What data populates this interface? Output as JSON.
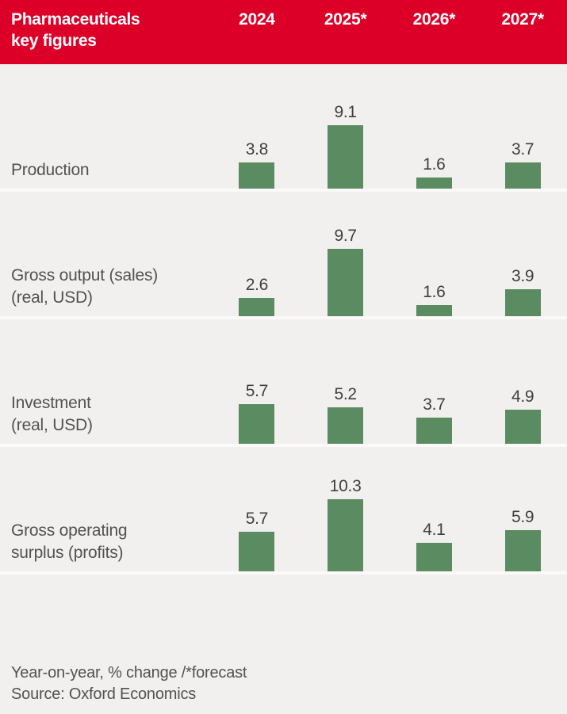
{
  "header": {
    "title_lines": [
      "Pharmaceuticals",
      "key figures"
    ],
    "columns": [
      "2024",
      "2025*",
      "2026*",
      "2027*"
    ]
  },
  "rows": [
    {
      "label_lines": [
        "Production"
      ],
      "values": [
        3.8,
        9.1,
        1.6,
        3.7
      ]
    },
    {
      "label_lines": [
        "Gross output (sales)",
        "(real, USD)"
      ],
      "values": [
        2.6,
        9.7,
        1.6,
        3.9
      ]
    },
    {
      "label_lines": [
        "Investment",
        "(real, USD)"
      ],
      "values": [
        5.7,
        5.2,
        3.7,
        4.9
      ]
    },
    {
      "label_lines": [
        "Gross operating",
        "surplus (profits)"
      ],
      "values": [
        5.7,
        10.3,
        4.1,
        5.9
      ]
    }
  ],
  "footer": {
    "note": "Year-on-year, % change /*forecast",
    "source": "Source: Oxford Economics"
  },
  "colors": {
    "header_bg": "#dc0028",
    "header_text": "#ffffff",
    "bar": "#5b8b60",
    "background": "#f1f0ee",
    "separator": "#fbfaf8",
    "label_text": "#545250",
    "value_text": "#3f3f3d"
  },
  "chart_data": {
    "type": "bar",
    "title": "Pharmaceuticals key figures",
    "categories": [
      "2024",
      "2025*",
      "2026*",
      "2027*"
    ],
    "series": [
      {
        "name": "Production",
        "values": [
          3.8,
          9.1,
          1.6,
          3.7
        ]
      },
      {
        "name": "Gross output (sales) (real, USD)",
        "values": [
          2.6,
          9.7,
          1.6,
          3.9
        ]
      },
      {
        "name": "Investment (real, USD)",
        "values": [
          5.7,
          5.2,
          3.7,
          4.9
        ]
      },
      {
        "name": "Gross operating surplus (profits)",
        "values": [
          5.7,
          10.3,
          4.1,
          5.9
        ]
      }
    ],
    "unit": "Year-on-year, % change",
    "note": "Year-on-year, % change /*forecast",
    "source": "Source: Oxford Economics",
    "value_labels": true,
    "grid": false,
    "legend_position": "none",
    "ylim": [
      0,
      10.3
    ]
  }
}
